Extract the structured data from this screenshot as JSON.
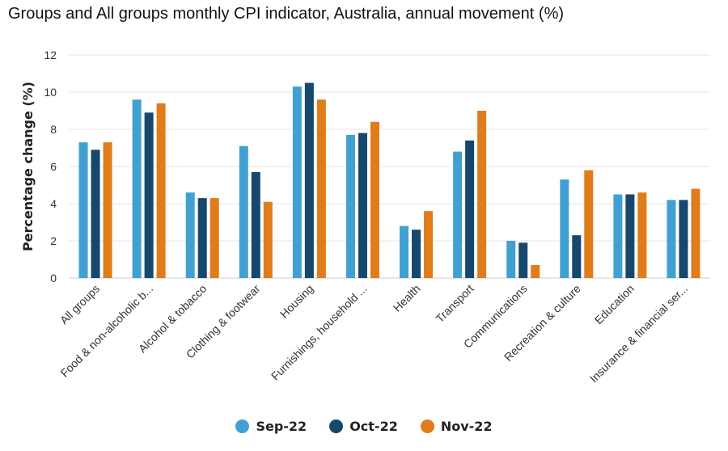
{
  "chart_data": {
    "type": "bar",
    "title": "Groups and All groups monthly CPI indicator, Australia, annual movement (%)",
    "ylabel": "Percentage change (%)",
    "xlabel": "",
    "ylim": [
      0,
      12
    ],
    "yticks": [
      0,
      2,
      4,
      6,
      8,
      10,
      12
    ],
    "grid": true,
    "legend_position": "bottom",
    "categories": [
      "All groups",
      "Food & non-alcoholic b...",
      "Alcohol & tobacco",
      "Clothing & footwear",
      "Housing",
      "Furnishings, household ...",
      "Health",
      "Transport",
      "Communications",
      "Recreation & culture",
      "Education",
      "Insurance & financial ser..."
    ],
    "series": [
      {
        "name": "Sep-22",
        "color": "#41a0d2",
        "values": [
          7.3,
          9.6,
          4.6,
          7.1,
          10.3,
          7.7,
          2.8,
          6.8,
          2.0,
          5.3,
          4.5,
          4.2
        ]
      },
      {
        "name": "Oct-22",
        "color": "#16476d",
        "values": [
          6.9,
          8.9,
          4.3,
          5.7,
          10.5,
          7.8,
          2.6,
          7.4,
          1.9,
          2.3,
          4.5,
          4.2
        ]
      },
      {
        "name": "Nov-22",
        "color": "#e07c19",
        "values": [
          7.3,
          9.4,
          4.3,
          4.1,
          9.6,
          8.4,
          3.6,
          9.0,
          0.7,
          5.8,
          4.6,
          4.8
        ]
      }
    ]
  }
}
